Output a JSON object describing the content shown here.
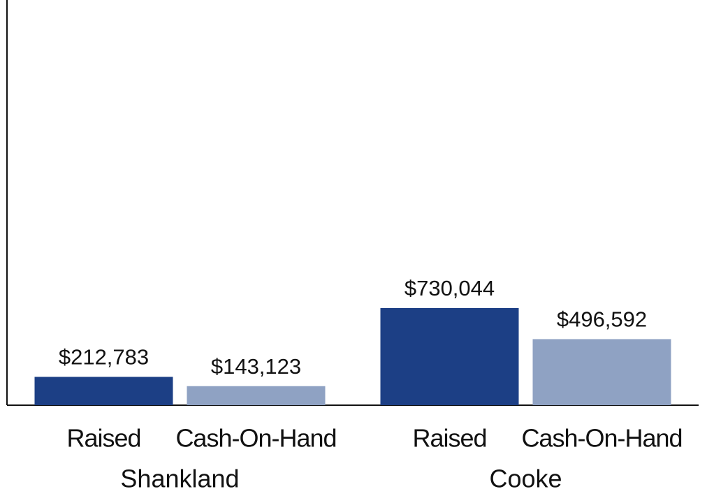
{
  "chart_data": {
    "type": "bar",
    "categories": [
      "Shankland",
      "Cooke"
    ],
    "series": [
      {
        "name": "Raised",
        "color": "#1c3f85",
        "values": [
          212783,
          730044
        ],
        "value_labels": [
          "$212,783",
          "$730,044"
        ]
      },
      {
        "name": "Cash-On-Hand",
        "color": "#8fa2c3",
        "values": [
          143123,
          496592
        ],
        "value_labels": [
          "$143,123",
          "$496,592"
        ]
      }
    ],
    "ylim": [
      0,
      3046000
    ]
  }
}
